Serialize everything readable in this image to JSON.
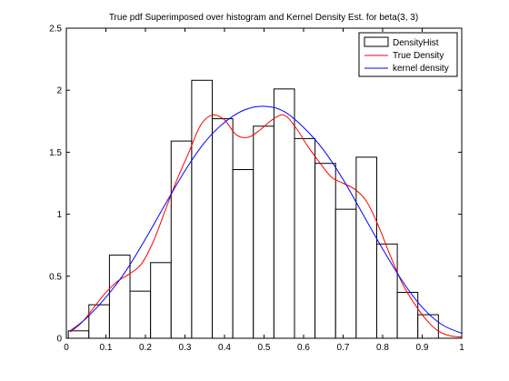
{
  "chart_data": {
    "type": "bar",
    "title": "True pdf Superimposed over histogram and Kernel Density Est. for beta(3, 3)",
    "xlim": [
      0,
      1
    ],
    "ylim": [
      0,
      2.5
    ],
    "x_ticks": [
      0,
      0.1,
      0.2,
      0.3,
      0.4,
      0.5,
      0.6,
      0.7,
      0.8,
      0.9,
      1
    ],
    "x_tick_labels": [
      "0",
      "0.1",
      "0.2",
      "0.3",
      "0.4",
      "0.5",
      "0.6",
      "0.7",
      "0.8",
      "0.9",
      "1"
    ],
    "y_ticks": [
      0,
      0.5,
      1,
      1.5,
      2,
      2.5
    ],
    "y_tick_labels": [
      "0",
      "0.5",
      "1",
      "1.5",
      "2",
      "2.5"
    ],
    "grid": false,
    "legend_position": "top-right",
    "histogram": {
      "name": "DensityHist",
      "bin_width": 0.052,
      "bin_starts": [
        0.005,
        0.057,
        0.109,
        0.161,
        0.213,
        0.265,
        0.317,
        0.369,
        0.421,
        0.473,
        0.525,
        0.577,
        0.629,
        0.681,
        0.733,
        0.785,
        0.837,
        0.889
      ],
      "values": [
        0.06,
        0.27,
        0.67,
        0.38,
        0.61,
        1.59,
        2.08,
        1.77,
        1.36,
        1.71,
        2.01,
        1.61,
        1.41,
        1.04,
        1.46,
        0.76,
        0.37,
        0.19
      ],
      "fill": "#ffffff",
      "stroke": "#000000"
    },
    "series": [
      {
        "name": "True Density",
        "color": "#ff0000",
        "x": [
          0.01,
          0.04,
          0.07,
          0.1,
          0.13,
          0.16,
          0.19,
          0.22,
          0.25,
          0.28,
          0.31,
          0.34,
          0.37,
          0.4,
          0.43,
          0.46,
          0.49,
          0.52,
          0.55,
          0.58,
          0.61,
          0.64,
          0.67,
          0.7,
          0.73,
          0.76,
          0.79,
          0.82,
          0.85,
          0.88,
          0.91,
          0.94,
          0.97,
          1.0
        ],
        "y": [
          0.05,
          0.13,
          0.25,
          0.37,
          0.46,
          0.52,
          0.6,
          0.78,
          1.03,
          1.28,
          1.5,
          1.72,
          1.8,
          1.76,
          1.64,
          1.62,
          1.68,
          1.76,
          1.8,
          1.7,
          1.55,
          1.42,
          1.3,
          1.25,
          1.2,
          1.1,
          0.9,
          0.66,
          0.44,
          0.28,
          0.15,
          0.06,
          0.02,
          0.01
        ]
      },
      {
        "name": "kernel density",
        "color": "#0000ff",
        "x": [
          0.01,
          0.05,
          0.1,
          0.15,
          0.2,
          0.25,
          0.3,
          0.35,
          0.4,
          0.45,
          0.5,
          0.55,
          0.6,
          0.65,
          0.7,
          0.75,
          0.8,
          0.85,
          0.9,
          0.95,
          1.0
        ],
        "y": [
          0.06,
          0.16,
          0.33,
          0.54,
          0.8,
          1.08,
          1.35,
          1.58,
          1.74,
          1.84,
          1.87,
          1.83,
          1.7,
          1.52,
          1.28,
          1.0,
          0.72,
          0.46,
          0.25,
          0.11,
          0.04
        ]
      }
    ]
  }
}
